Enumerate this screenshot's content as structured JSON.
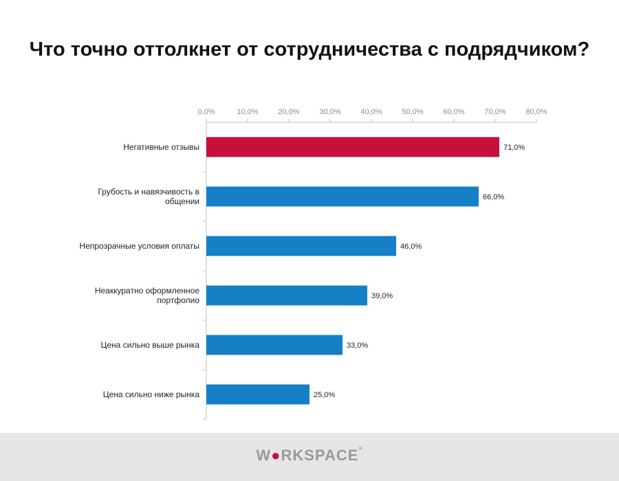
{
  "chart_data": {
    "type": "bar",
    "orientation": "horizontal",
    "title": "Что точно оттолкнет от сотрудничества с подрядчиком?",
    "categories": [
      [
        "Негативные отзывы"
      ],
      [
        "Грубость и навязчивость в",
        "общении"
      ],
      [
        "Непрозрачные условия оплаты"
      ],
      [
        "Неаккуратно оформленное",
        "портфолио"
      ],
      [
        "Цена сильно выше рынка"
      ],
      [
        "Цена сильно ниже рынка"
      ]
    ],
    "values": [
      71,
      66,
      46,
      39,
      33,
      25
    ],
    "value_labels": [
      "71,0%",
      "66,0%",
      "46,0%",
      "39,0%",
      "33,0%",
      "25,0%"
    ],
    "xlim": [
      0,
      80
    ],
    "ticks": [
      0,
      10,
      20,
      30,
      40,
      50,
      60,
      70,
      80
    ],
    "tick_labels": [
      "0,0%",
      "10,0%",
      "20,0%",
      "30,0%",
      "40,0%",
      "50,0%",
      "60,0%",
      "70,0%",
      "80,0%"
    ],
    "axis_position": "top",
    "grid": false,
    "colors": {
      "highlight": "#c4103a",
      "default": "#1580c5",
      "axis": "#bfbfbf",
      "tick_text": "#8c8c8c",
      "label_text": "#222222"
    },
    "highlight_index": 0
  },
  "footer": {
    "logo_prefix": "W",
    "logo_rest": "RKSPACE",
    "logo_mark": "®"
  }
}
